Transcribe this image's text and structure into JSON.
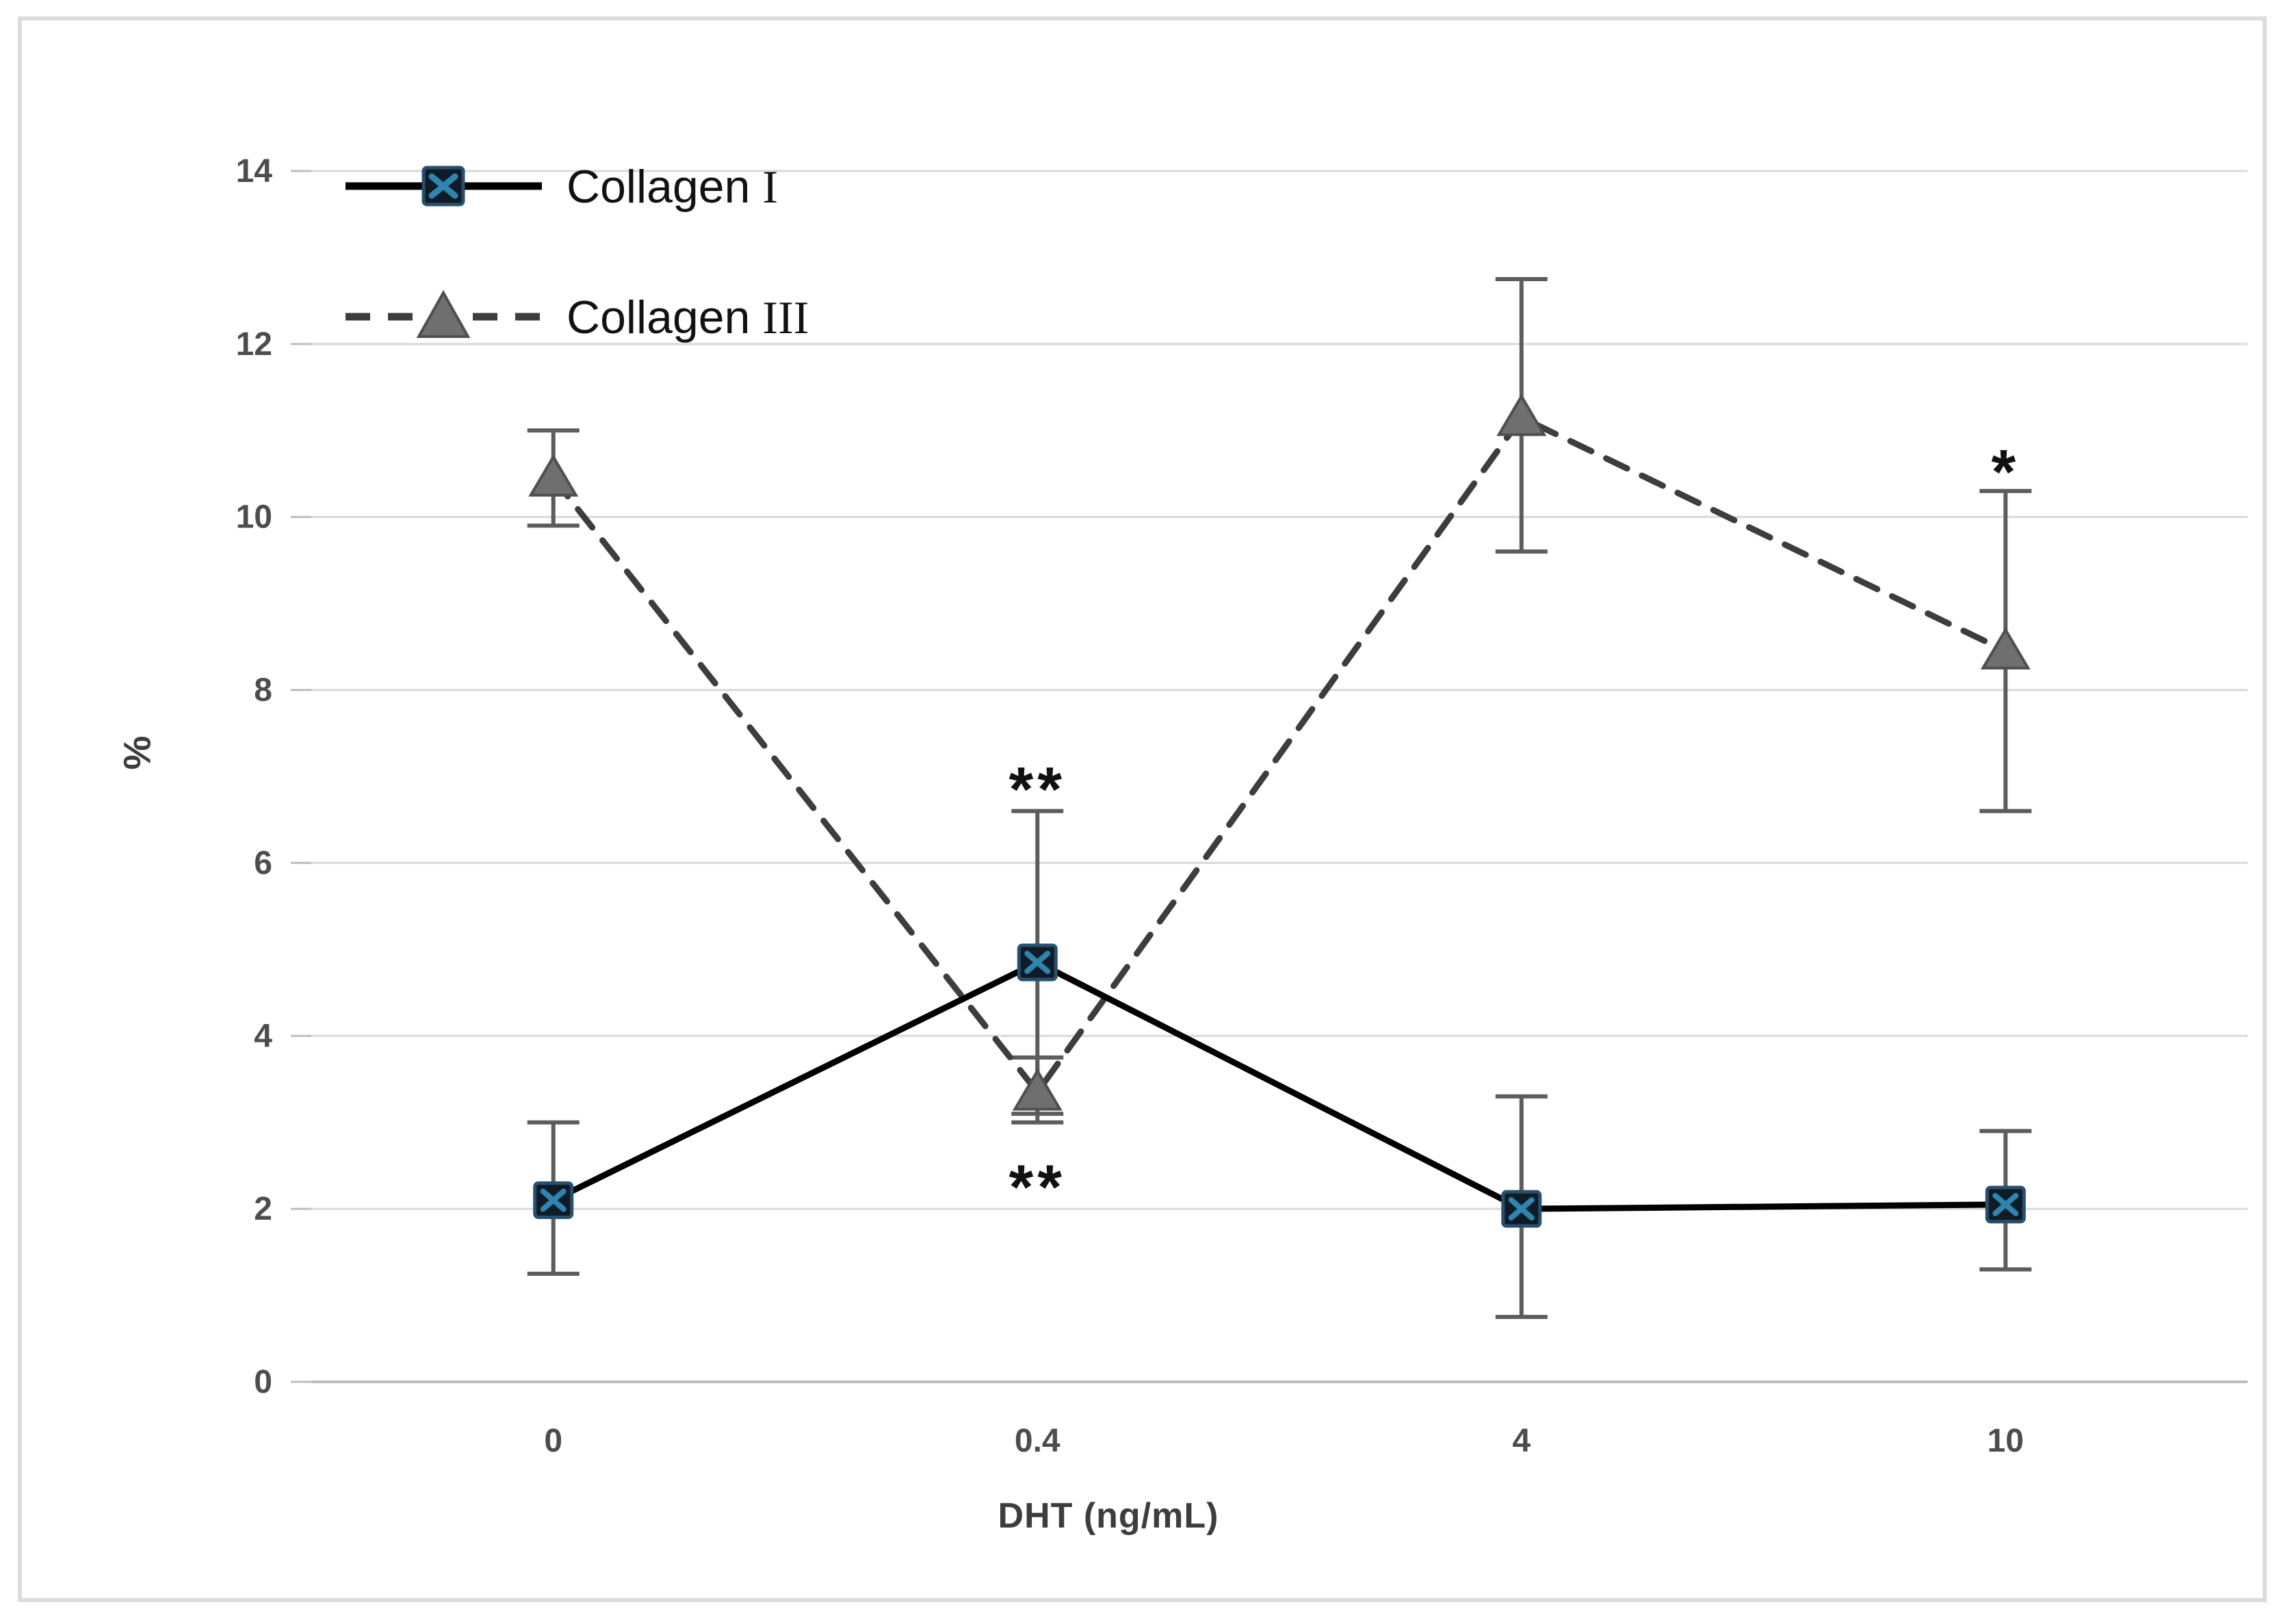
{
  "figure": {
    "background": "#ffffff",
    "border_color": "#dcdcdc"
  },
  "chart_data": {
    "type": "line",
    "title": "",
    "xlabel": "DHT (ng/mL)",
    "ylabel": "%",
    "categories": [
      "0",
      "0.4",
      "4",
      "10"
    ],
    "ylim": [
      0,
      14
    ],
    "yticks": [
      0,
      2,
      4,
      6,
      8,
      10,
      12,
      14
    ],
    "grid": "horizontal",
    "grid_color": "#d9d9d9",
    "axis_color": "#bdbdbd",
    "tick_label_color": "#4d4d4d",
    "error_bar_color": "#5c5c5c",
    "legend_position": "top-left",
    "series": [
      {
        "name": "Collagen I",
        "label_prefix": "Collagen",
        "label_numeral": "I",
        "line_style": "solid",
        "line_color": "#000000",
        "marker": "square-x",
        "marker_fill": "#0f1c27",
        "marker_edge": "#27506e",
        "marker_x_color": "#2e85b0",
        "values": [
          2.1,
          4.85,
          2.0,
          2.05
        ],
        "error_plus": [
          0.9,
          1.75,
          1.3,
          0.85
        ],
        "error_minus": [
          0.85,
          1.75,
          1.25,
          0.75
        ]
      },
      {
        "name": "Collagen III",
        "label_prefix": "Collagen",
        "label_numeral": "III",
        "line_style": "dashed",
        "line_color": "#3d3d3d",
        "marker": "triangle",
        "marker_fill": "#6f6f6f",
        "marker_edge": "#4f4f4f",
        "values": [
          10.45,
          3.35,
          11.15,
          8.45
        ],
        "error_plus": [
          0.55,
          0.4,
          1.6,
          1.85
        ],
        "error_minus": [
          0.55,
          0.35,
          1.55,
          1.85
        ]
      }
    ],
    "annotations": [
      {
        "text": "**",
        "category": "0.4",
        "y": 6.95
      },
      {
        "text": "**",
        "category": "0.4",
        "y": 2.35
      },
      {
        "text": "*",
        "category": "10",
        "y": 10.62
      }
    ]
  }
}
